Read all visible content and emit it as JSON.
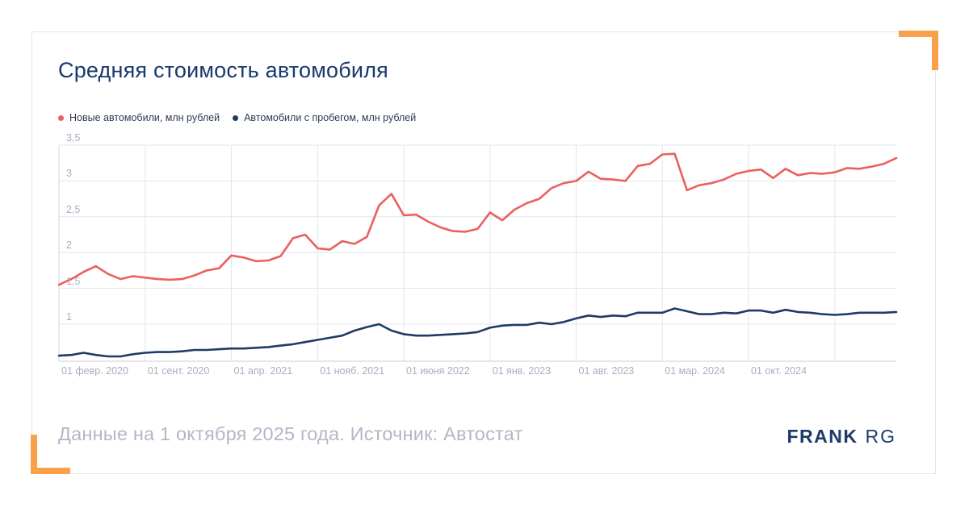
{
  "title": "Средняя стоимость автомобиля",
  "footer": {
    "note": "Данные на 1 октября 2025 года. Источник: Автостат",
    "brand_bold": "FRANK",
    "brand_light": "RG"
  },
  "colors": {
    "title": "#17396c",
    "new_cars_line": "#eb5f5f",
    "used_cars_line": "#1e3b66",
    "grid": "#e2e6f2",
    "axis": "#c8cede",
    "tick_label": "#a8aec1",
    "footer_text": "#b3b7c6",
    "corner_accent": "#f8a04a",
    "brand": "#1e3a66"
  },
  "chart_data": {
    "type": "line",
    "frequency": "monthly",
    "x_start": "2020-02-01",
    "x_end": "2025-10-01",
    "x_tick_labels": [
      "01 февр. 2020",
      "01 сент. 2020",
      "01 апр. 2021",
      "01 нояб. 2021",
      "01 июня 2022",
      "01 янв. 2023",
      "01 авг. 2023",
      "01 мар. 2024",
      "01 окт. 2024"
    ],
    "x_gridline_indices": [
      0,
      7,
      14,
      21,
      28,
      35,
      42,
      49,
      56,
      63
    ],
    "y_ticks": [
      {
        "value": 1,
        "label": "1"
      },
      {
        "value": 1.5,
        "label": "1,5"
      },
      {
        "value": 2,
        "label": "2"
      },
      {
        "value": 2.5,
        "label": "2,5"
      },
      {
        "value": 3,
        "label": "3"
      },
      {
        "value": 3.5,
        "label": "3,5"
      }
    ],
    "ylim": [
      0.48,
      3.55
    ],
    "grid": true,
    "legend_position": "top-left",
    "series": [
      {
        "name": "Новые автомобили, млн рублей",
        "color": "#eb5f5f",
        "values": [
          1.55,
          1.63,
          1.73,
          1.81,
          1.7,
          1.63,
          1.67,
          1.65,
          1.63,
          1.62,
          1.63,
          1.68,
          1.75,
          1.78,
          1.96,
          1.93,
          1.88,
          1.89,
          1.95,
          2.2,
          2.25,
          2.06,
          2.04,
          2.16,
          2.12,
          2.22,
          2.66,
          2.82,
          2.52,
          2.53,
          2.43,
          2.35,
          2.3,
          2.29,
          2.33,
          2.56,
          2.45,
          2.6,
          2.69,
          2.75,
          2.9,
          2.97,
          3.0,
          3.13,
          3.03,
          3.02,
          3.0,
          3.21,
          3.24,
          3.37,
          3.38,
          2.87,
          2.94,
          2.97,
          3.02,
          3.1,
          3.14,
          3.16,
          3.04,
          3.17,
          3.08,
          3.11,
          3.1,
          3.12,
          3.18,
          3.17,
          3.2,
          3.24,
          3.32
        ]
      },
      {
        "name": "Автомобили с пробегом, млн рублей",
        "color": "#1e3b66",
        "values": [
          0.56,
          0.57,
          0.6,
          0.57,
          0.55,
          0.55,
          0.58,
          0.6,
          0.61,
          0.61,
          0.62,
          0.64,
          0.64,
          0.65,
          0.66,
          0.66,
          0.67,
          0.68,
          0.7,
          0.72,
          0.75,
          0.78,
          0.81,
          0.84,
          0.91,
          0.96,
          1.0,
          0.91,
          0.86,
          0.84,
          0.84,
          0.85,
          0.86,
          0.87,
          0.89,
          0.95,
          0.98,
          0.99,
          0.99,
          1.02,
          1.0,
          1.03,
          1.08,
          1.12,
          1.1,
          1.12,
          1.11,
          1.16,
          1.16,
          1.16,
          1.22,
          1.18,
          1.14,
          1.14,
          1.16,
          1.15,
          1.19,
          1.19,
          1.16,
          1.2,
          1.17,
          1.16,
          1.14,
          1.13,
          1.14,
          1.16,
          1.16,
          1.16,
          1.17
        ]
      }
    ]
  }
}
